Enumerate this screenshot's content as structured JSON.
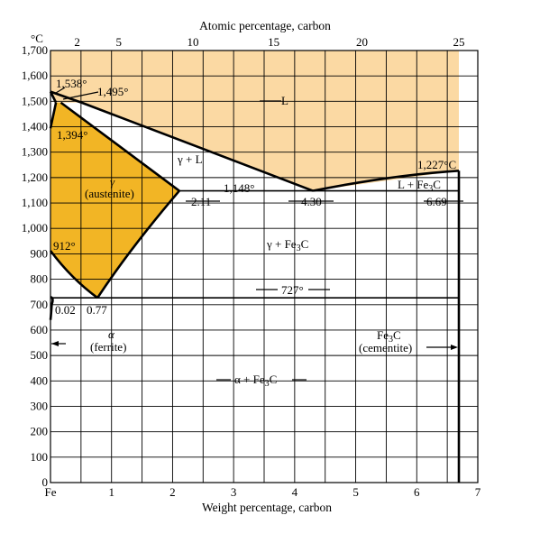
{
  "axes": {
    "x_bottom": {
      "title": "Weight percentage, carbon",
      "range": [
        0,
        7
      ],
      "ticks": [
        "Fe",
        "1",
        "2",
        "3",
        "4",
        "5",
        "6",
        "7"
      ]
    },
    "x_top": {
      "title": "Atomic percentage, carbon",
      "ticks": [
        {
          "at": 2,
          "label": "2"
        },
        {
          "at": 5,
          "label": "5"
        },
        {
          "at": 10,
          "label": "10"
        },
        {
          "at": 15,
          "label": "15"
        },
        {
          "at": 20,
          "label": "20"
        },
        {
          "at": 25,
          "label": "25"
        }
      ]
    },
    "y": {
      "unit": "°C",
      "range": [
        0,
        1700
      ],
      "ticks": [
        "0",
        "100",
        "200",
        "300",
        "400",
        "500",
        "600",
        "700",
        "800",
        "900",
        "1,000",
        "1,100",
        "1,200",
        "1,300",
        "1,400",
        "1,500",
        "1,600",
        "1,700"
      ]
    }
  },
  "colors": {
    "liquid": "#fbd9a3",
    "austenite": "#f2b525",
    "line": "#000000",
    "background": "#ffffff"
  },
  "points": {
    "liquidus_top": [
      [
        0,
        1538
      ],
      [
        0.51,
        1495
      ],
      [
        4.3,
        1148
      ],
      [
        6.69,
        1227
      ]
    ],
    "eutectic": {
      "wt": 4.3,
      "temp": 1148
    },
    "eutectoid": {
      "wt": 0.77,
      "temp": 727
    },
    "max_austenite": {
      "wt": 2.11,
      "temp": 1148
    }
  },
  "labels": {
    "t1538": "1,538°",
    "t1495": "1,495°",
    "t1394": "1,394°",
    "t1227": "1,227°C",
    "t1148": "1,148°",
    "t912": "912°",
    "t727": "727°",
    "c211": "2.11",
    "c430": "4.30",
    "c669": "6.69",
    "c002": "0.02",
    "c077": "0.77",
    "L": "L",
    "gammaL": "γ + L",
    "gamma": "γ",
    "austenite": "(austenite)",
    "LFe3C_pre": "L + Fe",
    "gammaFe3C_pre": "γ + Fe",
    "alpha": "α",
    "ferrite": "(ferrite)",
    "alphaFe3C_pre": "α + Fe",
    "Fe3C_main": "Fe",
    "cementite": "(cementite)",
    "sub3": "3",
    "C": "C"
  }
}
